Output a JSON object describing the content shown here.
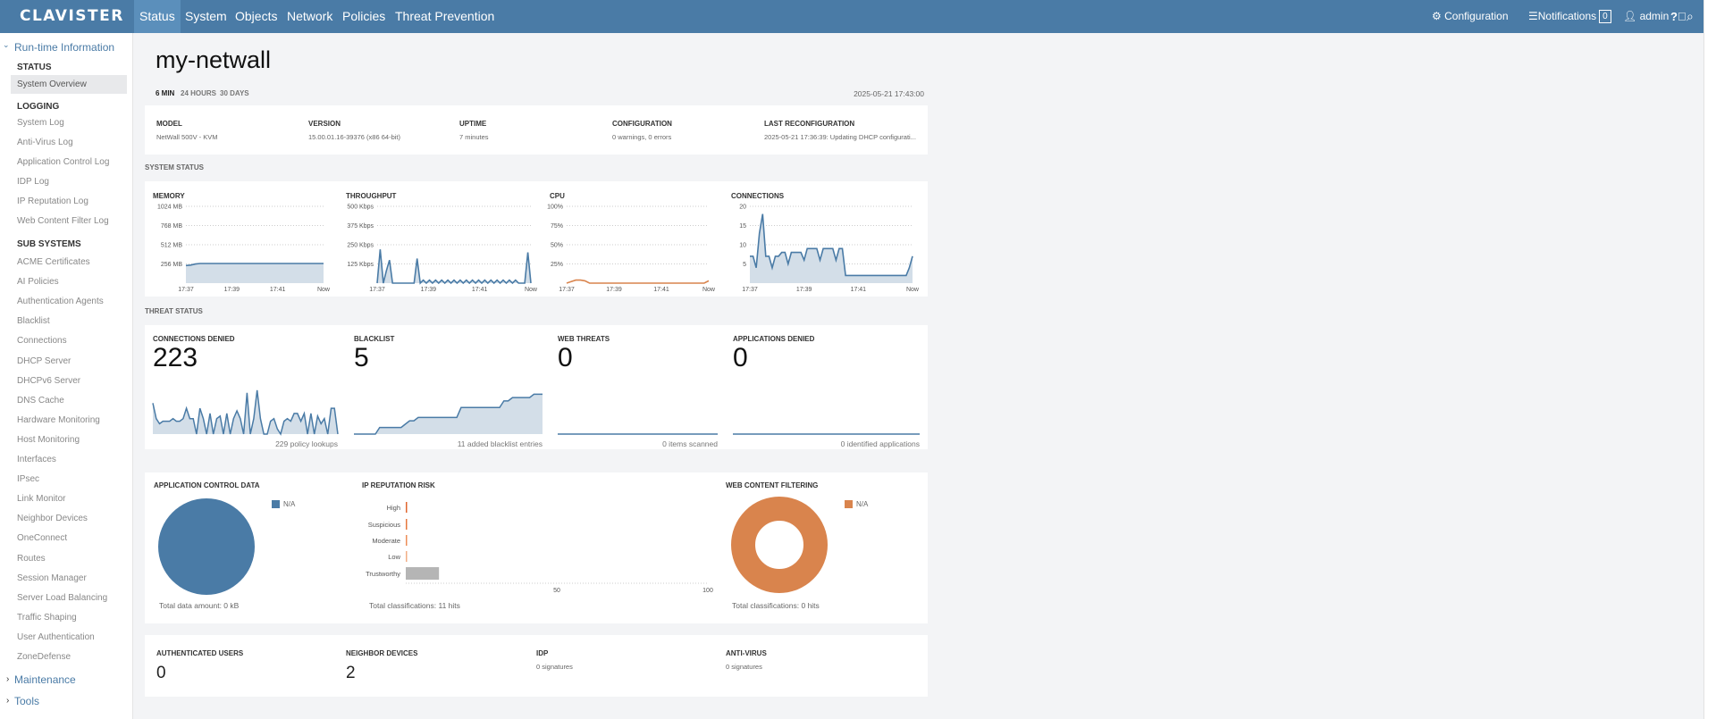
{
  "topbar": {
    "logo": "CLAVISTER",
    "nav": [
      "Status",
      "System",
      "Objects",
      "Network",
      "Policies",
      "Threat Prevention"
    ],
    "active_nav": "Status",
    "configuration": "Configuration",
    "notifications": "Notifications",
    "notification_count": "0",
    "user": "admin"
  },
  "sidebar": {
    "runtime": "Run-time Information",
    "status_group": "STATUS",
    "status_items": [
      "System Overview"
    ],
    "logging_group": "LOGGING",
    "logging_items": [
      "System Log",
      "Anti-Virus Log",
      "Application Control Log",
      "IDP Log",
      "IP Reputation Log",
      "Web Content Filter Log"
    ],
    "subsystems_group": "SUB SYSTEMS",
    "subsystems_items": [
      "ACME Certificates",
      "AI Policies",
      "Authentication Agents",
      "Blacklist",
      "Connections",
      "DHCP Server",
      "DHCPv6 Server",
      "DNS Cache",
      "Hardware Monitoring",
      "Host Monitoring",
      "Interfaces",
      "IPsec",
      "Link Monitor",
      "Neighbor Devices",
      "OneConnect",
      "Routes",
      "Session Manager",
      "Server Load Balancing",
      "Traffic Shaping",
      "User Authentication",
      "ZoneDefense"
    ],
    "maintenance": "Maintenance",
    "tools": "Tools"
  },
  "main": {
    "title": "my-netwall",
    "ranges": [
      "6 MIN",
      "24 HOURS",
      "30 DAYS"
    ],
    "active_range": "6 MIN",
    "timestamp": "2025-05-21 17:43:00",
    "info": [
      {
        "label": "MODEL",
        "value": "NetWall 500V - KVM"
      },
      {
        "label": "VERSION",
        "value": "15.00.01.16-39376 (x86 64-bit)"
      },
      {
        "label": "UPTIME",
        "value": "7 minutes"
      },
      {
        "label": "CONFIGURATION",
        "value": "0 warnings, 0 errors"
      },
      {
        "label": "LAST RECONFIGURATION",
        "value": "2025-05-21 17:36:39: Updating DHCP configurati..."
      }
    ],
    "system_status_heading": "SYSTEM STATUS",
    "threat_status_heading": "THREAT STATUS",
    "threats": [
      {
        "label": "CONNECTIONS DENIED",
        "value": "223",
        "footer": "229 policy lookups"
      },
      {
        "label": "BLACKLIST",
        "value": "5",
        "footer": "11 added blacklist entries"
      },
      {
        "label": "WEB THREATS",
        "value": "0",
        "footer": "0 items scanned"
      },
      {
        "label": "APPLICATIONS DENIED",
        "value": "0",
        "footer": "0 identified applications"
      }
    ],
    "app_control": {
      "title": "APPLICATION CONTROL DATA",
      "legend": "N/A",
      "footer": "Total data amount: 0 kB"
    },
    "ip_reputation": {
      "title": "IP REPUTATION RISK",
      "footer": "Total classifications: 11 hits"
    },
    "web_content": {
      "title": "WEB CONTENT FILTERING",
      "legend": "N/A",
      "footer": "Total classifications: 0 hits"
    },
    "bottom": [
      {
        "label": "AUTHENTICATED USERS",
        "value": "0"
      },
      {
        "label": "NEIGHBOR DEVICES",
        "value": "2"
      },
      {
        "label": "IDP",
        "sub": "0 signatures"
      },
      {
        "label": "ANTI-VIRUS",
        "sub": "0 signatures"
      }
    ]
  },
  "colors": {
    "brand": "#4a7ba6",
    "fill": "#d3dee8",
    "orange": "#d9844d",
    "grey": "#b5b5b5"
  },
  "chart_data": [
    {
      "id": "memory",
      "type": "area",
      "title": "MEMORY",
      "yticks": [
        "256 MB",
        "512 MB",
        "768 MB",
        "1024 MB"
      ],
      "ylim": [
        0,
        1024
      ],
      "xticks": [
        "17:37",
        "17:39",
        "17:41",
        "Now"
      ],
      "values": [
        235,
        240,
        255,
        262,
        262,
        262,
        262,
        262,
        262,
        262,
        262,
        262,
        262,
        262,
        262,
        262,
        262,
        262,
        262,
        262,
        262,
        262,
        262,
        262,
        262,
        262,
        262,
        262,
        262,
        262
      ],
      "color": "#4a7ba6"
    },
    {
      "id": "throughput",
      "type": "area",
      "title": "THROUGHPUT",
      "yticks": [
        "125 Kbps",
        "250 Kbps",
        "375 Kbps",
        "500 Kbps"
      ],
      "ylim": [
        0,
        500
      ],
      "xticks": [
        "17:37",
        "17:39",
        "17:41",
        "Now"
      ],
      "values": [
        0,
        220,
        0,
        80,
        150,
        0,
        0,
        0,
        0,
        0,
        0,
        0,
        0,
        160,
        0,
        20,
        0,
        20,
        0,
        20,
        0,
        20,
        0,
        20,
        0,
        20,
        0,
        20,
        0,
        20,
        0,
        20,
        0,
        20,
        0,
        20,
        0,
        20,
        0,
        20,
        0,
        20,
        0,
        20,
        0,
        20,
        0,
        0,
        0,
        200,
        0
      ],
      "color": "#4a7ba6"
    },
    {
      "id": "cpu",
      "type": "line",
      "title": "CPU",
      "yticks": [
        "25%",
        "50%",
        "75%",
        "100%"
      ],
      "ylim": [
        0,
        100
      ],
      "xticks": [
        "17:37",
        "17:39",
        "17:41",
        "Now"
      ],
      "values": [
        0,
        2,
        4,
        4,
        3,
        0,
        0,
        0,
        0,
        0,
        0,
        0,
        0,
        0,
        0,
        0,
        0,
        0,
        0,
        0,
        0,
        0,
        0,
        0,
        0,
        0,
        0,
        0,
        0,
        0,
        0,
        3
      ],
      "color": "#d9844d"
    },
    {
      "id": "connections",
      "type": "area",
      "title": "CONNECTIONS",
      "yticks": [
        "5",
        "10",
        "15",
        "20"
      ],
      "ylim": [
        0,
        20
      ],
      "xticks": [
        "17:37",
        "17:39",
        "17:41",
        "Now"
      ],
      "values": [
        7,
        7,
        4,
        13,
        18,
        7,
        7,
        4,
        7,
        7,
        8,
        8,
        5,
        8,
        8,
        8,
        8,
        6,
        9,
        9,
        9,
        9,
        6,
        9,
        9,
        9,
        9,
        6,
        9,
        9,
        2,
        2,
        2,
        2,
        2,
        2,
        2,
        2,
        2,
        2,
        2,
        2,
        2,
        2,
        2,
        2,
        2,
        2,
        2,
        2,
        4,
        7
      ],
      "color": "#4a7ba6"
    },
    {
      "id": "denied",
      "type": "sparkline",
      "values": [
        6,
        3,
        2,
        2.5,
        2.5,
        2.5,
        3,
        2.5,
        2.5,
        3,
        5,
        3,
        3,
        0,
        5,
        3,
        0,
        4,
        0,
        3,
        3.5,
        0,
        4,
        0,
        3,
        4.5,
        3,
        0,
        8,
        0,
        3,
        8.5,
        3,
        0,
        0,
        2.5,
        3,
        1,
        0,
        2.5,
        3,
        2.5,
        4,
        4,
        2.5,
        4,
        0,
        4,
        0,
        3.5,
        2,
        3,
        0,
        5,
        5,
        0
      ],
      "ylim": [
        0,
        9
      ]
    },
    {
      "id": "blacklist",
      "type": "sparkline",
      "values": [
        0,
        0,
        0,
        0,
        0,
        0,
        1,
        1,
        1,
        1,
        1,
        1,
        1.5,
        2,
        2,
        2.5,
        2.5,
        2.5,
        2.5,
        2.5,
        2.5,
        2.5,
        2.5,
        2.5,
        2.5,
        4,
        4,
        4,
        4,
        4,
        4,
        4,
        4,
        4,
        4,
        5,
        5,
        5.5,
        5.5,
        5.5,
        5.5,
        5.5,
        6,
        6,
        6
      ],
      "ylim": [
        0,
        7
      ]
    },
    {
      "id": "webthreats",
      "type": "sparkline",
      "values": [
        0,
        0
      ],
      "ylim": [
        0,
        7
      ]
    },
    {
      "id": "appsdenied",
      "type": "sparkline",
      "values": [
        0,
        0
      ],
      "ylim": [
        0,
        7
      ]
    },
    {
      "id": "appcontrol",
      "type": "pie",
      "slices": [
        {
          "name": "N/A",
          "value": 1
        }
      ],
      "color": "#4a7ba6"
    },
    {
      "id": "iprep",
      "type": "bar",
      "orientation": "horizontal",
      "categories": [
        "High",
        "Suspicious",
        "Moderate",
        "Low",
        "Trustworthy"
      ],
      "values": [
        0,
        0,
        0,
        0,
        11
      ],
      "bar_colors": [
        "#e0662e",
        "#e6783d",
        "#ec8d57",
        "#f2ae85",
        "#b5b5b5"
      ],
      "xlim": [
        0,
        100
      ],
      "xticks": [
        "50",
        "100"
      ]
    },
    {
      "id": "webcontent",
      "type": "pie",
      "donut": true,
      "slices": [
        {
          "name": "N/A",
          "value": 1
        }
      ],
      "color": "#d9844d"
    }
  ]
}
